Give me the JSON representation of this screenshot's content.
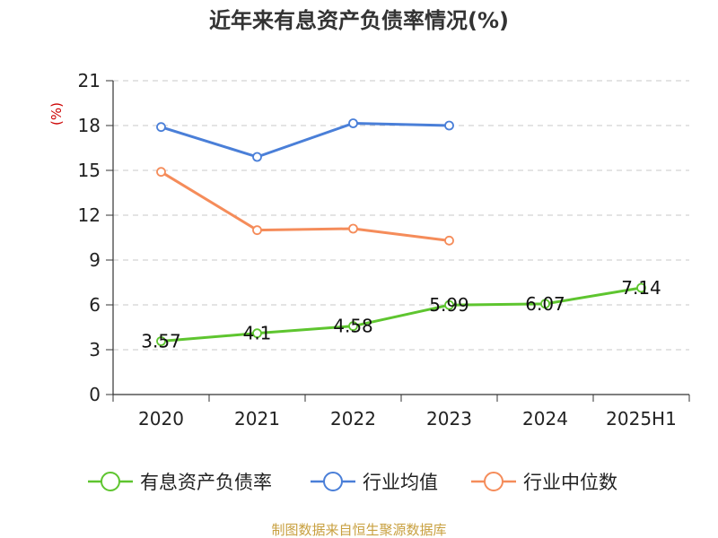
{
  "chart_data": {
    "type": "line",
    "title": "近年来有息资产负债率情况(%)",
    "ylabel": "(%)",
    "xlabel": "",
    "categories": [
      "2020",
      "2021",
      "2022",
      "2023",
      "2024",
      "2025H1"
    ],
    "ylim": [
      0,
      21
    ],
    "yticks": [
      0,
      3,
      6,
      9,
      12,
      15,
      18,
      21
    ],
    "grid": true,
    "legend_position": "bottom",
    "series": [
      {
        "name": "有息资产负债率",
        "color": "#5ec52f",
        "values": [
          3.57,
          4.1,
          4.58,
          5.99,
          6.07,
          7.14
        ],
        "labels": [
          "3.57",
          "4.1",
          "4.58",
          "5.99",
          "6.07",
          "7.14"
        ]
      },
      {
        "name": "行业均值",
        "color": "#4a7fd8",
        "values": [
          17.9,
          15.9,
          18.15,
          18.0,
          null,
          null
        ]
      },
      {
        "name": "行业中位数",
        "color": "#f58c5a",
        "values": [
          14.9,
          11.0,
          11.1,
          10.3,
          null,
          null
        ]
      }
    ],
    "source": "制图数据来自恒生聚源数据库"
  }
}
